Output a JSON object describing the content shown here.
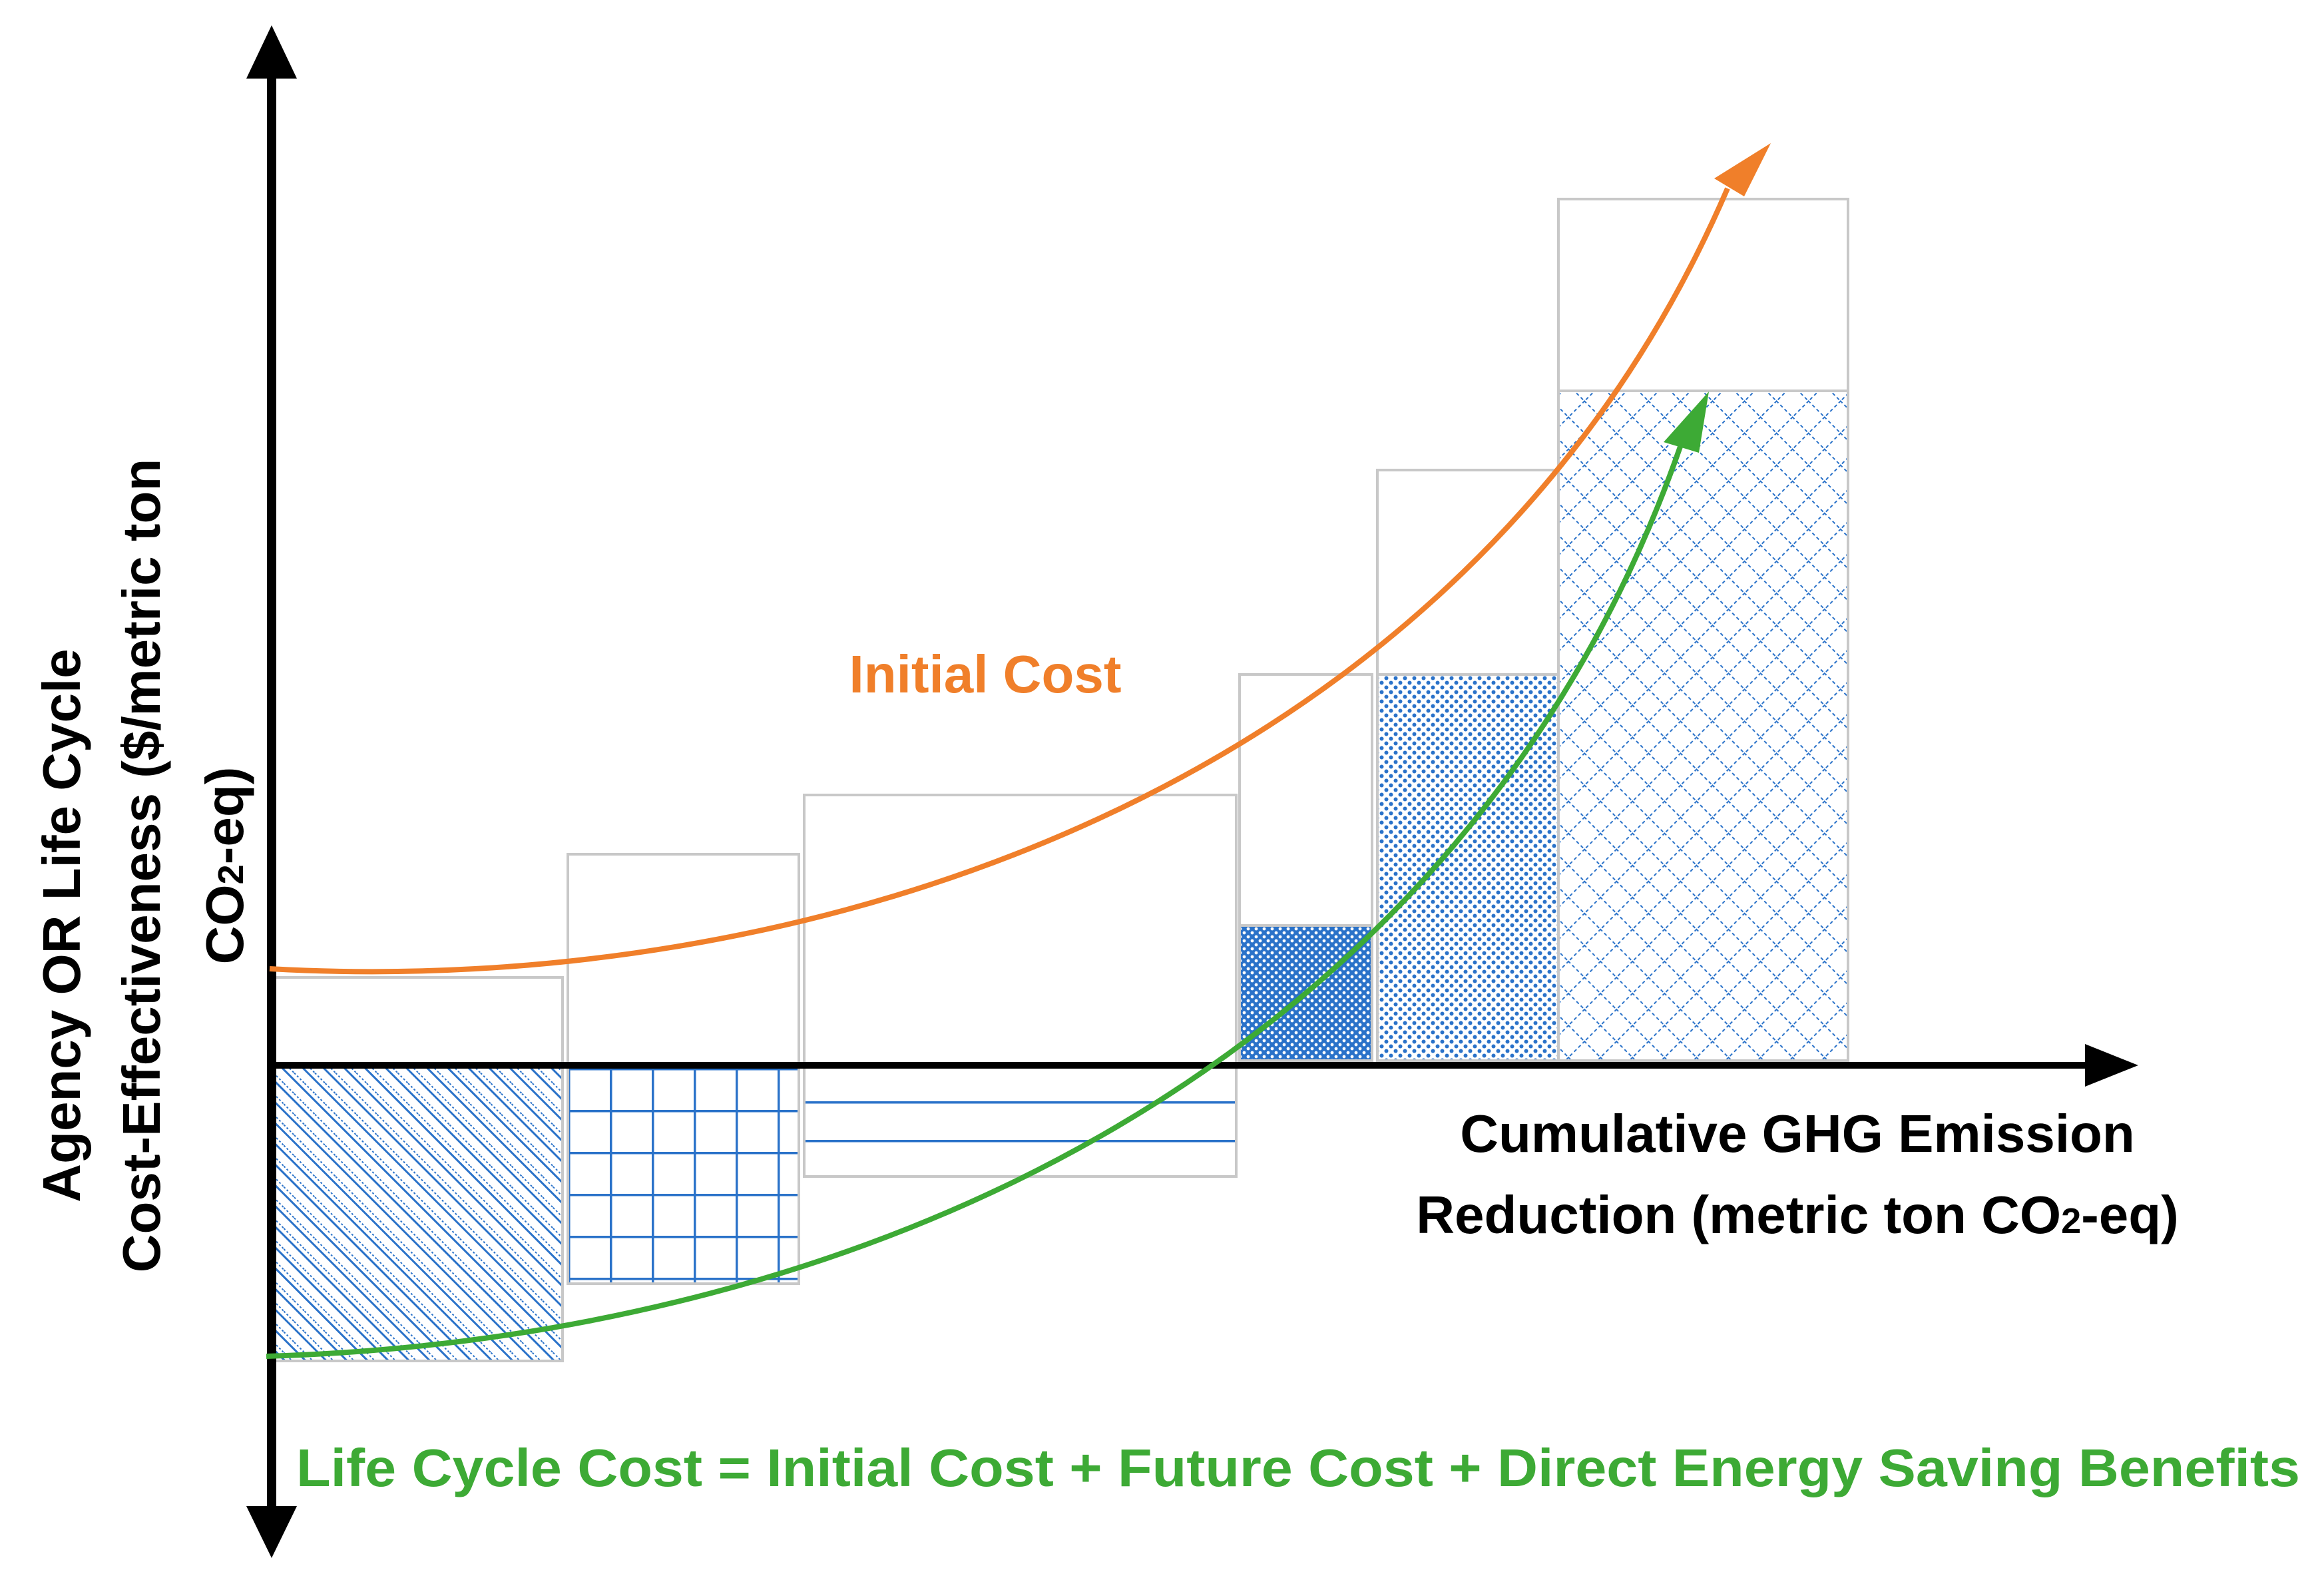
{
  "diagram": {
    "x_axis_label_line1": "Cumulative GHG Emission",
    "x_axis_label_line2_pre": "Reduction (metric ton CO",
    "x_axis_label_line2_sub": "2",
    "x_axis_label_line2_post": "-eq)",
    "y_axis_label_line1": "Agency OR Life Cycle",
    "y_axis_label_line2": "Cost-Effectiveness ($/metric ton",
    "y_axis_label_line3_pre": "CO",
    "y_axis_label_line3_sub": "2",
    "y_axis_label_line3_post": "-eq)",
    "initial_cost_label": "Initial Cost",
    "life_cycle_formula": "Life Cycle Cost = Initial Cost + Future Cost + Direct Energy Saving Benefits",
    "colors": {
      "axis": "#000000",
      "initial_cost_curve": "#f07f2a",
      "life_cycle_curve": "#3daa35",
      "pattern": "#2a72c9",
      "box_outline": "#c8c8c8"
    },
    "measures": [
      {
        "id": "measure-1",
        "pattern": "diagonal-hatch",
        "initial_cost": 1.2,
        "life_cycle_cost": -3.9
      },
      {
        "id": "measure-2",
        "pattern": "grid",
        "initial_cost": 2.8,
        "life_cycle_cost": -2.9
      },
      {
        "id": "measure-3",
        "pattern": "horizontal-lines",
        "initial_cost": 3.6,
        "life_cycle_cost": -1.4
      },
      {
        "id": "measure-4",
        "pattern": "dense-dots",
        "initial_cost": 5.2,
        "life_cycle_cost": 1.8
      },
      {
        "id": "measure-5",
        "pattern": "sparse-dots",
        "initial_cost": 7.9,
        "life_cycle_cost": 5.2
      },
      {
        "id": "measure-6",
        "pattern": "crosshatch",
        "initial_cost": 11.4,
        "life_cycle_cost": 8.9
      }
    ]
  }
}
